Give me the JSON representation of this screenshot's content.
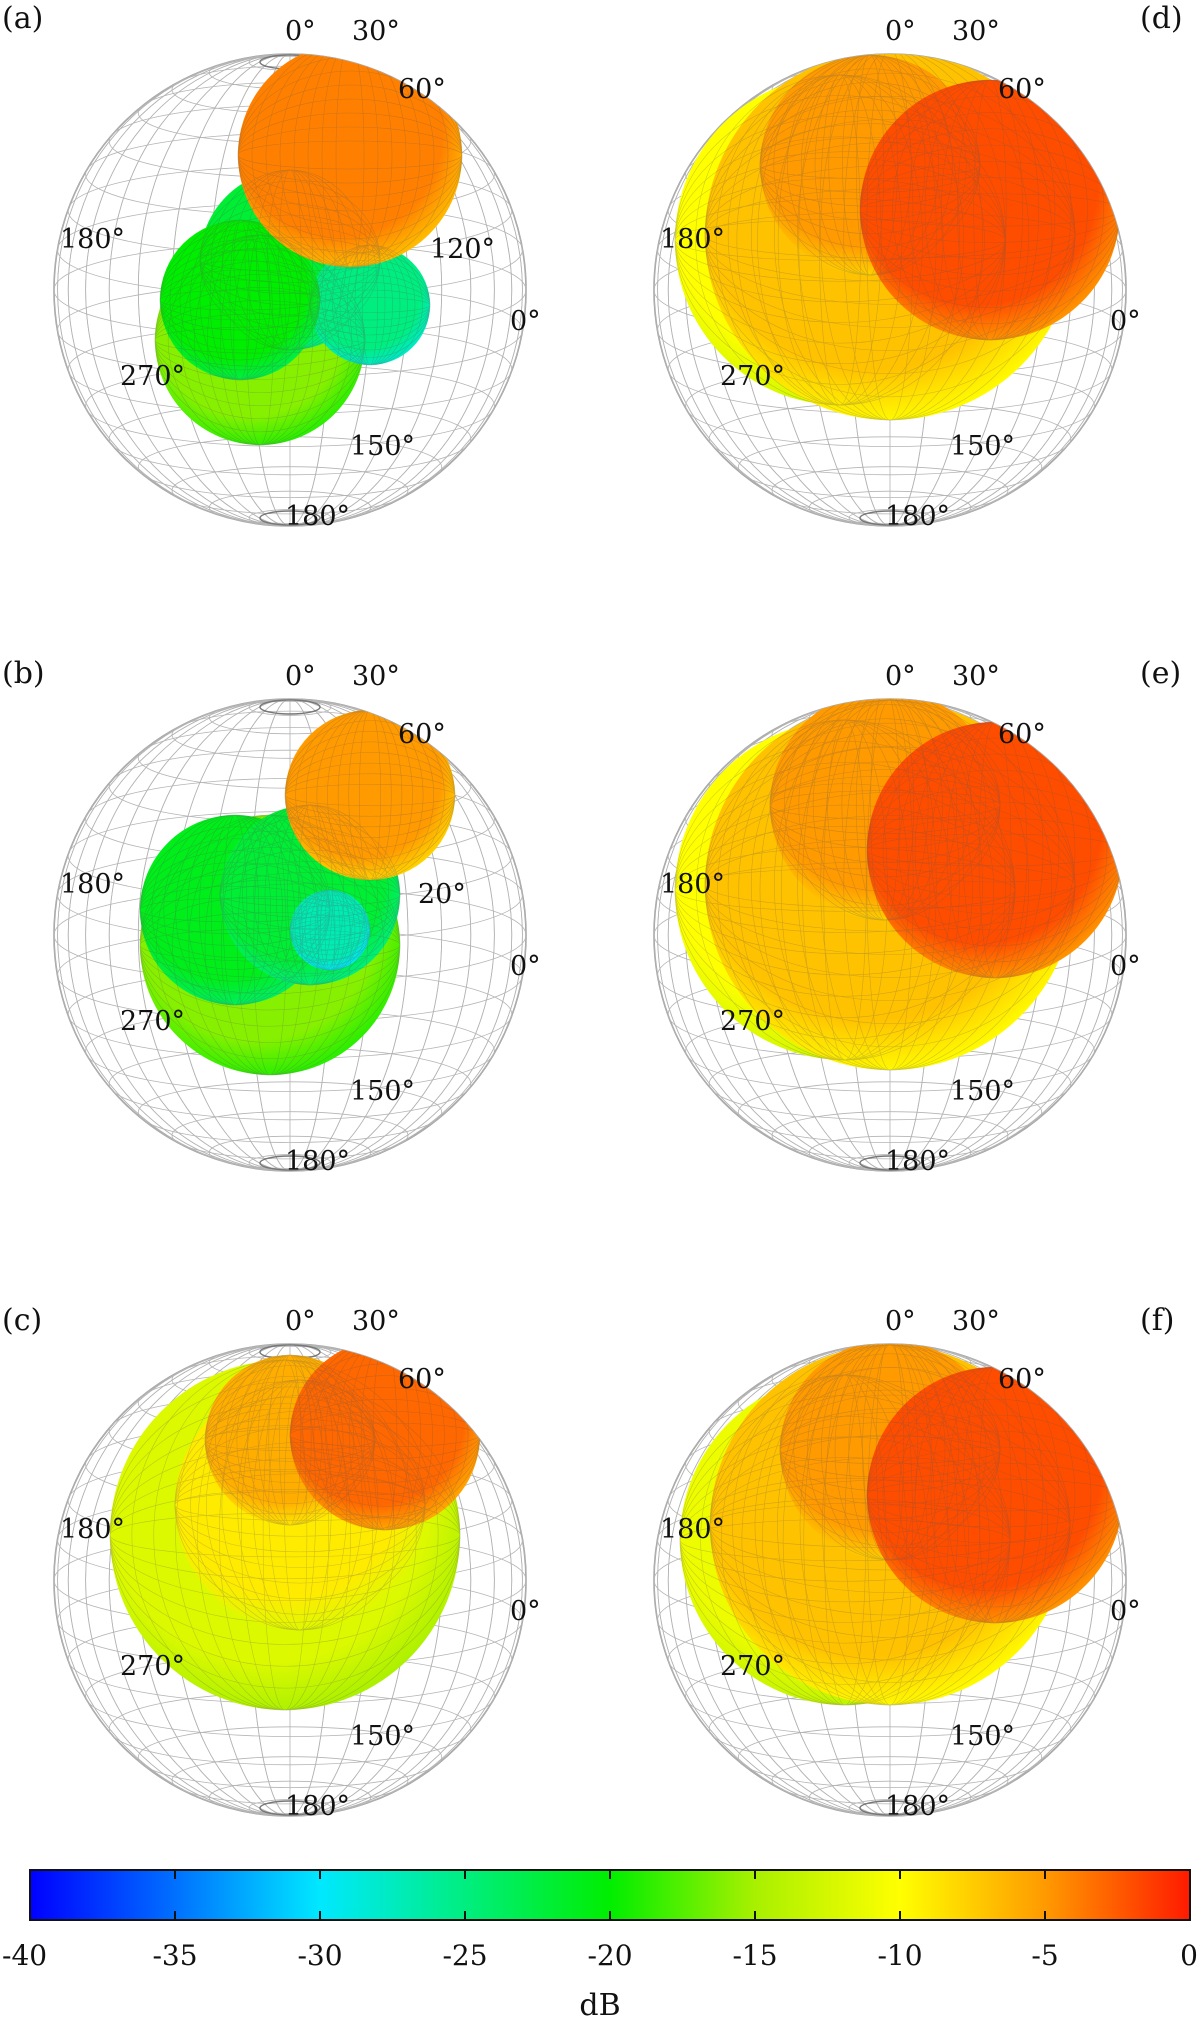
{
  "panels": [
    {
      "label": "(a)",
      "angle_labels": [
        "0°",
        "30°",
        "60°",
        "180°",
        "120°",
        "0°",
        "270°",
        "150°",
        "180°"
      ],
      "lobes": [
        {
          "level_db": -16,
          "cx": 260,
          "cy": 340,
          "r": 105
        },
        {
          "level_db": -22,
          "cx": 290,
          "cy": 260,
          "r": 90
        },
        {
          "level_db": -25,
          "cx": 370,
          "cy": 305,
          "r": 60
        },
        {
          "level_db": -20,
          "cx": 240,
          "cy": 300,
          "r": 80
        },
        {
          "level_db": -4,
          "cx": 350,
          "cy": 155,
          "r": 112
        }
      ],
      "peak_db": -1
    },
    {
      "label": "(b)",
      "angle_labels": [
        "0°",
        "30°",
        "60°",
        "180°",
        "20°",
        "0°",
        "270°",
        "150°",
        "180°"
      ],
      "lobes": [
        {
          "level_db": -16,
          "cx": 270,
          "cy": 300,
          "r": 130
        },
        {
          "level_db": -21,
          "cx": 235,
          "cy": 265,
          "r": 95
        },
        {
          "level_db": -22,
          "cx": 310,
          "cy": 250,
          "r": 90
        },
        {
          "level_db": -27,
          "cx": 330,
          "cy": 285,
          "r": 40
        },
        {
          "level_db": -5,
          "cx": 370,
          "cy": 150,
          "r": 85
        }
      ],
      "peak_db": -1
    },
    {
      "label": "(c)",
      "angle_labels": [
        "0°",
        "30°",
        "60°",
        "180°",
        "0°",
        "270°",
        "150°",
        "180°"
      ],
      "lobes": [
        {
          "level_db": -12,
          "cx": 285,
          "cy": 245,
          "r": 175
        },
        {
          "level_db": -9,
          "cx": 300,
          "cy": 215,
          "r": 125
        },
        {
          "level_db": -6,
          "cx": 290,
          "cy": 150,
          "r": 85
        },
        {
          "level_db": -3,
          "cx": 385,
          "cy": 145,
          "r": 95
        }
      ],
      "peak_db": -1
    },
    {
      "label": "(d)",
      "angle_labels": [
        "0°",
        "30°",
        "60°",
        "180°",
        "0°",
        "270°",
        "150°",
        "180°"
      ],
      "lobes": [
        {
          "level_db": -10,
          "cx": 240,
          "cy": 240,
          "r": 165
        },
        {
          "level_db": -7,
          "cx": 290,
          "cy": 235,
          "r": 185
        },
        {
          "level_db": -5,
          "cx": 270,
          "cy": 165,
          "r": 110
        },
        {
          "level_db": -2,
          "cx": 390,
          "cy": 210,
          "r": 130
        }
      ],
      "peak_db": -1
    },
    {
      "label": "(e)",
      "angle_labels": [
        "0°",
        "30°",
        "60°",
        "180°",
        "0°",
        "270°",
        "150°",
        "180°"
      ],
      "lobes": [
        {
          "level_db": -10,
          "cx": 245,
          "cy": 245,
          "r": 170
        },
        {
          "level_db": -7,
          "cx": 290,
          "cy": 240,
          "r": 185
        },
        {
          "level_db": -5,
          "cx": 285,
          "cy": 160,
          "r": 115
        },
        {
          "level_db": -2,
          "cx": 395,
          "cy": 205,
          "r": 128
        }
      ],
      "peak_db": -1
    },
    {
      "label": "(f)",
      "angle_labels": [
        "0°",
        "30°",
        "60°",
        "180°",
        "0°",
        "270°",
        "150°",
        "180°"
      ],
      "lobes": [
        {
          "level_db": -11,
          "cx": 245,
          "cy": 250,
          "r": 165
        },
        {
          "level_db": -7,
          "cx": 290,
          "cy": 235,
          "r": 180
        },
        {
          "level_db": -5,
          "cx": 290,
          "cy": 160,
          "r": 110
        },
        {
          "level_db": -2,
          "cx": 395,
          "cy": 205,
          "r": 128
        }
      ],
      "peak_db": -1
    }
  ],
  "colorbar": {
    "min": -40,
    "max": 0,
    "ticks": [
      "-40",
      "-35",
      "-30",
      "-25",
      "-20",
      "-15",
      "-10",
      "-5",
      "0"
    ],
    "unit": "dB",
    "colormap": [
      "#0000ff",
      "#0070ff",
      "#00e8ff",
      "#00ee80",
      "#00ee00",
      "#a8f000",
      "#ffff00",
      "#ff9a00",
      "#ff1a00"
    ]
  }
}
